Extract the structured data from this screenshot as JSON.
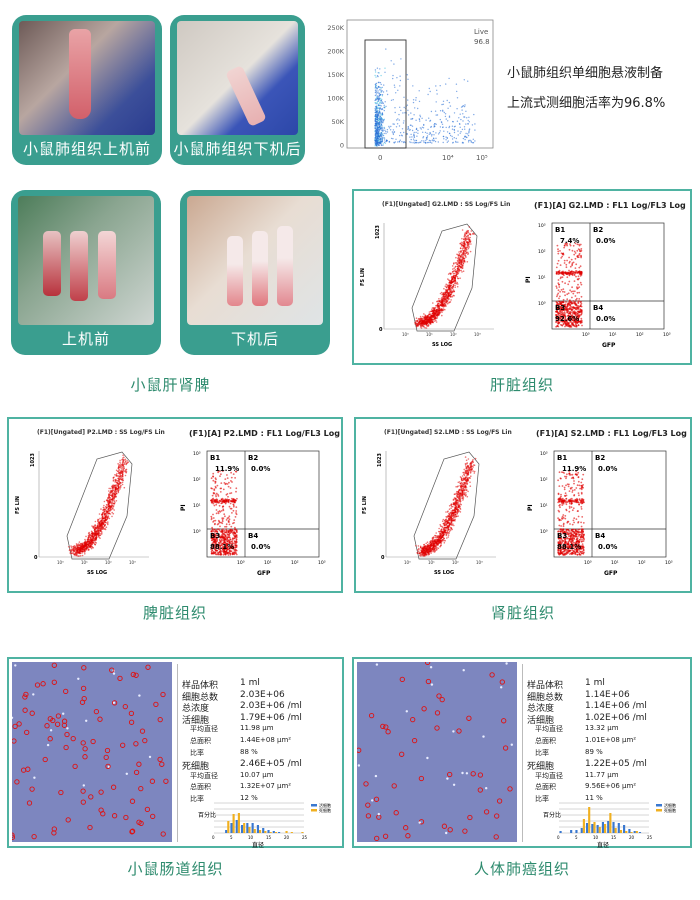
{
  "colors": {
    "card": "#3a9e8f",
    "caption": "#2e8b6e",
    "border": "#4fb3a2",
    "scatter": "#e00000",
    "flow_live": "#2a6fd6"
  },
  "top": {
    "cards": [
      {
        "label": "小鼠肺组织上机前"
      },
      {
        "label": "小鼠肺组织下机后"
      }
    ],
    "live_plot": {
      "gate_label": "Live",
      "gate_value": "96.8",
      "y_ticks": [
        "250K",
        "200K",
        "150K",
        "100K",
        "50K",
        "0"
      ],
      "x_ticks": [
        "0",
        "10⁴",
        "10⁵"
      ]
    },
    "side_text": [
      "小鼠肺组织单细胞悬液制备",
      "上流式测细胞活率为96.8%"
    ]
  },
  "organ_cards": [
    {
      "label": "上机前"
    },
    {
      "label": "下机后"
    }
  ],
  "captions": {
    "organ": "小鼠肝肾脾",
    "liver": "肝脏组织",
    "spleen": "脾脏组织",
    "kidney": "肾脏组织",
    "intestine": "小鼠肠道组织",
    "human": "人体肺癌组织"
  },
  "flow_panels": [
    {
      "id": "liver",
      "scatter_title": "(F1)[Ungated] G2.LMD : SS Log/FS Lin",
      "quad_title": "(F1)[A] G2.LMD : FL1 Log/FL3 Log",
      "B1": "7.4%",
      "B2": "0.0%",
      "B3": "92.6%",
      "B4": "0.0%"
    },
    {
      "id": "spleen",
      "scatter_title": "(F1)[Ungated] P2.LMD : SS Log/FS Lin",
      "quad_title": "(F1)[A] P2.LMD : FL1 Log/FL3 Log",
      "B1": "11.9%",
      "B2": "0.0%",
      "B3": "88.1%",
      "B4": "0.0%"
    },
    {
      "id": "kidney",
      "scatter_title": "(F1)[Ungated] S2.LMD : SS Log/FS Lin",
      "quad_title": "(F1)[A] S2.LMD : FL1 Log/FL3 Log",
      "B1": "11.9%",
      "B2": "0.0%",
      "B3": "88.1%",
      "B4": "0.0%"
    }
  ],
  "flow_axes": {
    "fs_label": "FS LIN",
    "ss_label": "SS LOG",
    "pi_label": "PI",
    "gfp_label": "GFP",
    "fs_top": "1023",
    "fs_zero": "0",
    "quad_labels": [
      "B1",
      "B2",
      "B3",
      "B4"
    ],
    "log_ticks": [
      "10⁰",
      "10¹",
      "10²",
      "10³"
    ]
  },
  "count_tables": [
    {
      "rows": [
        [
          "样品体积",
          "1 ml"
        ],
        [
          "细胞总数",
          "2.03E+06"
        ],
        [
          "总浓度",
          "2.03E+06 /ml"
        ],
        [
          "活细胞",
          "1.79E+06 /ml"
        ],
        [
          "平均直径",
          "11.98 μm"
        ],
        [
          "总面积",
          "1.44E+08 μm²"
        ],
        [
          "比率",
          "88 %"
        ],
        [
          "死细胞",
          "2.46E+05 /ml"
        ],
        [
          "平均直径",
          "10.07 μm"
        ],
        [
          "总面积",
          "1.32E+07 μm²"
        ],
        [
          "比率",
          "12 %"
        ]
      ],
      "hist": {
        "ylabel": "百分比",
        "xlabel": "直径",
        "x_ticks": [
          "0",
          "5",
          "10",
          "15",
          "20",
          "25"
        ],
        "legend": [
          "活细胞",
          "死细胞"
        ],
        "live": [
          0,
          0,
          3,
          10,
          13,
          8,
          10,
          10,
          8,
          5,
          3,
          2,
          1,
          0,
          0,
          0,
          0
        ],
        "dead": [
          0,
          0,
          12,
          19,
          20,
          10,
          6,
          4,
          3,
          2,
          1,
          1,
          0,
          2,
          1,
          0,
          1
        ]
      }
    },
    {
      "rows": [
        [
          "样品体积",
          "1 ml"
        ],
        [
          "细胞总数",
          "1.14E+06"
        ],
        [
          "总浓度",
          "1.14E+06 /ml"
        ],
        [
          "活细胞",
          "1.02E+06 /ml"
        ],
        [
          "平均直径",
          "13.32 μm"
        ],
        [
          "总面积",
          "1.01E+08 μm²"
        ],
        [
          "比率",
          "89 %"
        ],
        [
          "死细胞",
          "1.22E+05 /ml"
        ],
        [
          "平均直径",
          "11.77 μm"
        ],
        [
          "总面积",
          "9.56E+06 μm²"
        ],
        [
          "比率",
          "11 %"
        ]
      ],
      "hist": {
        "ylabel": "百分比",
        "xlabel": "直径",
        "x_ticks": [
          "0",
          "5",
          "10",
          "15",
          "20",
          "25"
        ],
        "legend": [
          "活细胞",
          "死细胞"
        ],
        "live": [
          2,
          0,
          3,
          3,
          5,
          10,
          9,
          8,
          11,
          12,
          11,
          10,
          8,
          4,
          2,
          1,
          0
        ],
        "dead": [
          0,
          0,
          0,
          0,
          14,
          26,
          11,
          6,
          9,
          20,
          5,
          3,
          2,
          1,
          2,
          0,
          0
        ]
      }
    }
  ]
}
